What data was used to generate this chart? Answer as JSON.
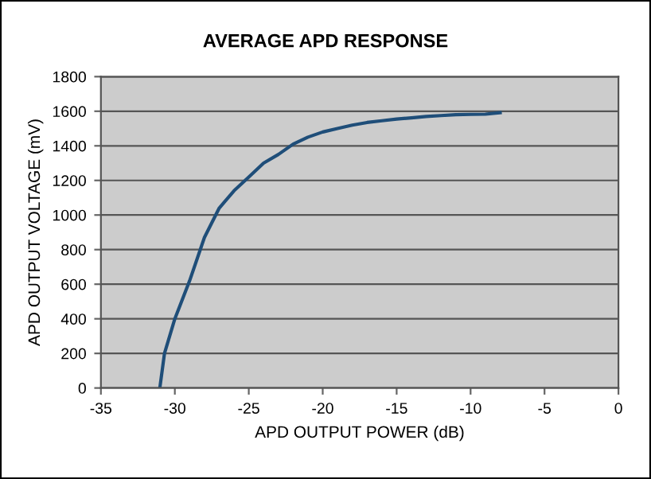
{
  "chart_data": {
    "type": "line",
    "title": "AVERAGE APD RESPONSE",
    "xlabel": "APD OUTPUT POWER (dB)",
    "ylabel": "APD OUTPUT VOLTAGE (mV)",
    "series": [
      {
        "color": "#1f4e79",
        "x": [
          -31,
          -30.7,
          -30,
          -29,
          -28,
          -27,
          -26,
          -25,
          -24,
          -23,
          -22,
          -21,
          -20,
          -19,
          -18,
          -17,
          -16,
          -15,
          -14,
          -13,
          -12,
          -11,
          -10,
          -9,
          -8
        ],
        "values": [
          10,
          200,
          400,
          620,
          870,
          1040,
          1140,
          1220,
          1300,
          1350,
          1410,
          1450,
          1480,
          1500,
          1520,
          1535,
          1545,
          1555,
          1562,
          1570,
          1575,
          1580,
          1582,
          1583,
          1592
        ]
      }
    ],
    "xlim": [
      -35,
      0
    ],
    "xticks": [
      -35,
      -30,
      -25,
      -20,
      -15,
      -10,
      -5,
      0
    ],
    "ylim": [
      0,
      1800
    ],
    "yticks": [
      0,
      200,
      400,
      600,
      800,
      1000,
      1200,
      1400,
      1600,
      1800
    ],
    "grid": "y",
    "marker": "none",
    "line_style": "solid",
    "legend": false
  }
}
